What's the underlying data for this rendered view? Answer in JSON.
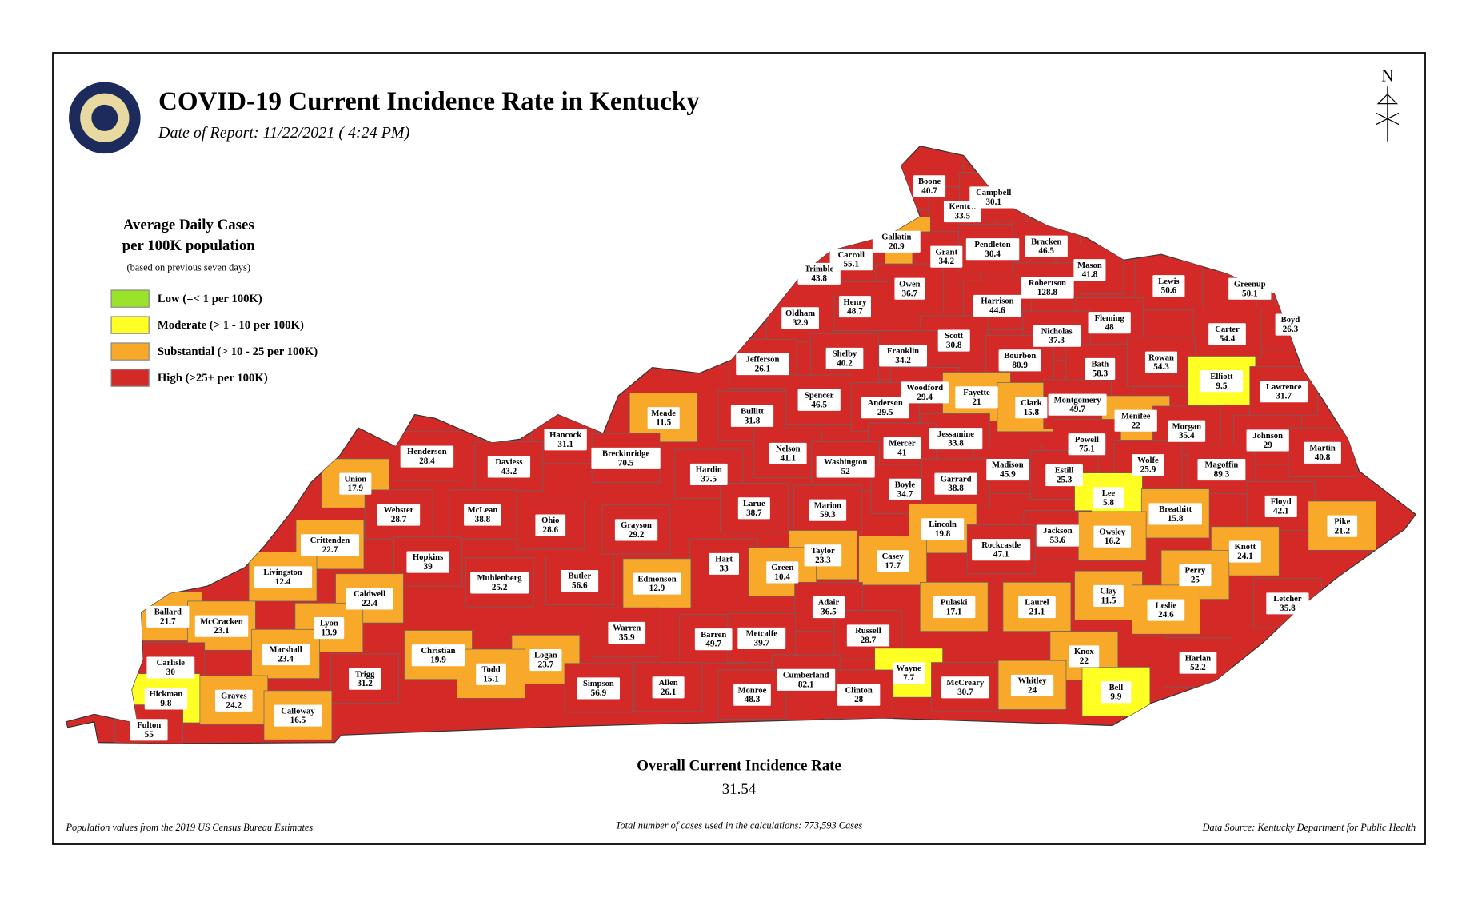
{
  "header": {
    "title": "COVID-19 Current Incidence Rate in Kentucky",
    "date": "Date of Report: 11/22/2021 ( 4:24 PM)"
  },
  "legend": {
    "title": [
      "Average Daily Cases",
      "per 100K population"
    ],
    "note": "(based on previous seven days)",
    "items": [
      {
        "label": "Low (=< 1 per 100K)",
        "color": "#9be32b"
      },
      {
        "label": "Moderate (> 1 - 10 per 100K)",
        "color": "#ffff24"
      },
      {
        "label": "Substantial (> 10 - 25 per 100K)",
        "color": "#f8a92a"
      },
      {
        "label": "High (>25+ per 100K)",
        "color": "#d42a27"
      }
    ]
  },
  "counties": [
    {
      "name": "Boone",
      "value": 40.7,
      "color": "#d42a27"
    },
    {
      "name": "Kenton",
      "value": 33.5,
      "color": "#d42a27"
    },
    {
      "name": "Campbell",
      "value": 30.1,
      "color": "#d42a27"
    },
    {
      "name": "Gallatin",
      "value": 20.9,
      "color": "#f8a92a"
    },
    {
      "name": "Carroll",
      "value": 55.1,
      "color": "#d42a27"
    },
    {
      "name": "Trimble",
      "value": 43.8,
      "color": "#d42a27"
    },
    {
      "name": "Grant",
      "value": 34.2,
      "color": "#d42a27"
    },
    {
      "name": "Pendleton",
      "value": 30.4,
      "color": "#d42a27"
    },
    {
      "name": "Bracken",
      "value": 46.5,
      "color": "#d42a27"
    },
    {
      "name": "Mason",
      "value": 41.8,
      "color": "#d42a27"
    },
    {
      "name": "Robertson",
      "value": 128.8,
      "color": "#d42a27"
    },
    {
      "name": "Lewis",
      "value": 50.6,
      "color": "#d42a27"
    },
    {
      "name": "Greenup",
      "value": 50.1,
      "color": "#d42a27"
    },
    {
      "name": "Owen",
      "value": 36.7,
      "color": "#d42a27"
    },
    {
      "name": "Henry",
      "value": 48.7,
      "color": "#d42a27"
    },
    {
      "name": "Oldham",
      "value": 32.9,
      "color": "#d42a27"
    },
    {
      "name": "Harrison",
      "value": 44.6,
      "color": "#d42a27"
    },
    {
      "name": "Fleming",
      "value": 48,
      "color": "#d42a27"
    },
    {
      "name": "Boyd",
      "value": 26.3,
      "color": "#d42a27"
    },
    {
      "name": "Carter",
      "value": 54.4,
      "color": "#d42a27"
    },
    {
      "name": "Nicholas",
      "value": 37.3,
      "color": "#d42a27"
    },
    {
      "name": "Scott",
      "value": 30.8,
      "color": "#d42a27"
    },
    {
      "name": "Franklin",
      "value": 34.2,
      "color": "#d42a27"
    },
    {
      "name": "Shelby",
      "value": 40.2,
      "color": "#d42a27"
    },
    {
      "name": "Jefferson",
      "value": 26.1,
      "color": "#d42a27"
    },
    {
      "name": "Bourbon",
      "value": 80.9,
      "color": "#d42a27"
    },
    {
      "name": "Bath",
      "value": 58.3,
      "color": "#d42a27"
    },
    {
      "name": "Rowan",
      "value": 54.3,
      "color": "#d42a27"
    },
    {
      "name": "Elliott",
      "value": 9.5,
      "color": "#ffff24"
    },
    {
      "name": "Lawrence",
      "value": 31.7,
      "color": "#d42a27"
    },
    {
      "name": "Woodford",
      "value": 29.4,
      "color": "#d42a27"
    },
    {
      "name": "Fayette",
      "value": 21,
      "color": "#f8a92a"
    },
    {
      "name": "Clark",
      "value": 15.8,
      "color": "#f8a92a"
    },
    {
      "name": "Montgomery",
      "value": 49.7,
      "color": "#d42a27"
    },
    {
      "name": "Spencer",
      "value": 46.5,
      "color": "#d42a27"
    },
    {
      "name": "Anderson",
      "value": 29.5,
      "color": "#d42a27"
    },
    {
      "name": "Menifee",
      "value": 22,
      "color": "#f8a92a"
    },
    {
      "name": "Bullitt",
      "value": 31.8,
      "color": "#d42a27"
    },
    {
      "name": "Meade",
      "value": 11.5,
      "color": "#f8a92a"
    },
    {
      "name": "Morgan",
      "value": 35.4,
      "color": "#d42a27"
    },
    {
      "name": "Johnson",
      "value": 29,
      "color": "#d42a27"
    },
    {
      "name": "Martin",
      "value": 40.8,
      "color": "#d42a27"
    },
    {
      "name": "Jessamine",
      "value": 33.8,
      "color": "#d42a27"
    },
    {
      "name": "Mercer",
      "value": 41,
      "color": "#d42a27"
    },
    {
      "name": "Powell",
      "value": 75.1,
      "color": "#d42a27"
    },
    {
      "name": "Hancock",
      "value": 31.1,
      "color": "#d42a27"
    },
    {
      "name": "Henderson",
      "value": 28.4,
      "color": "#d42a27"
    },
    {
      "name": "Daviess",
      "value": 43.2,
      "color": "#d42a27"
    },
    {
      "name": "Breckinridge",
      "value": 70.5,
      "color": "#d42a27"
    },
    {
      "name": "Nelson",
      "value": 41.1,
      "color": "#d42a27"
    },
    {
      "name": "Washington",
      "value": 52,
      "color": "#d42a27"
    },
    {
      "name": "Madison",
      "value": 45.9,
      "color": "#d42a27"
    },
    {
      "name": "Estill",
      "value": 25.3,
      "color": "#d42a27"
    },
    {
      "name": "Wolfe",
      "value": 25.9,
      "color": "#d42a27"
    },
    {
      "name": "Magoffin",
      "value": 89.3,
      "color": "#d42a27"
    },
    {
      "name": "Hardin",
      "value": 37.5,
      "color": "#d42a27"
    },
    {
      "name": "Boyle",
      "value": 34.7,
      "color": "#d42a27"
    },
    {
      "name": "Garrard",
      "value": 38.8,
      "color": "#d42a27"
    },
    {
      "name": "Union",
      "value": 17.9,
      "color": "#f8a92a"
    },
    {
      "name": "Lee",
      "value": 5.8,
      "color": "#ffff24"
    },
    {
      "name": "Webster",
      "value": 28.7,
      "color": "#d42a27"
    },
    {
      "name": "McLean",
      "value": 38.8,
      "color": "#d42a27"
    },
    {
      "name": "Larue",
      "value": 38.7,
      "color": "#d42a27"
    },
    {
      "name": "Marion",
      "value": 59.3,
      "color": "#d42a27"
    },
    {
      "name": "Breathitt",
      "value": 15.8,
      "color": "#f8a92a"
    },
    {
      "name": "Floyd",
      "value": 42.1,
      "color": "#d42a27"
    },
    {
      "name": "Ohio",
      "value": 28.6,
      "color": "#d42a27"
    },
    {
      "name": "Lincoln",
      "value": 19.8,
      "color": "#f8a92a"
    },
    {
      "name": "Grayson",
      "value": 29.2,
      "color": "#d42a27"
    },
    {
      "name": "Jackson",
      "value": 53.6,
      "color": "#d42a27"
    },
    {
      "name": "Owsley",
      "value": 16.2,
      "color": "#f8a92a"
    },
    {
      "name": "Pike",
      "value": 21.2,
      "color": "#f8a92a"
    },
    {
      "name": "Crittenden",
      "value": 22.7,
      "color": "#f8a92a"
    },
    {
      "name": "Taylor",
      "value": 23.3,
      "color": "#f8a92a"
    },
    {
      "name": "Casey",
      "value": 17.7,
      "color": "#f8a92a"
    },
    {
      "name": "Rockcastle",
      "value": 47.1,
      "color": "#d42a27"
    },
    {
      "name": "Knott",
      "value": 24.1,
      "color": "#f8a92a"
    },
    {
      "name": "Hopkins",
      "value": 39,
      "color": "#d42a27"
    },
    {
      "name": "Hart",
      "value": 33,
      "color": "#d42a27"
    },
    {
      "name": "Green",
      "value": 10.4,
      "color": "#f8a92a"
    },
    {
      "name": "Edmonson",
      "value": 12.9,
      "color": "#f8a92a"
    },
    {
      "name": "Livingston",
      "value": 12.4,
      "color": "#f8a92a"
    },
    {
      "name": "Butler",
      "value": 56.6,
      "color": "#d42a27"
    },
    {
      "name": "Muhlenberg",
      "value": 25.2,
      "color": "#d42a27"
    },
    {
      "name": "Perry",
      "value": 25,
      "color": "#f8a92a"
    },
    {
      "name": "Caldwell",
      "value": 22.4,
      "color": "#f8a92a"
    },
    {
      "name": "Clay",
      "value": 11.5,
      "color": "#f8a92a"
    },
    {
      "name": "Pulaski",
      "value": 17.1,
      "color": "#f8a92a"
    },
    {
      "name": "Laurel",
      "value": 21.1,
      "color": "#f8a92a"
    },
    {
      "name": "Ballard",
      "value": 21.7,
      "color": "#f8a92a"
    },
    {
      "name": "Leslie",
      "value": 24.6,
      "color": "#f8a92a"
    },
    {
      "name": "Letcher",
      "value": 35.8,
      "color": "#d42a27"
    },
    {
      "name": "Adair",
      "value": 36.5,
      "color": "#d42a27"
    },
    {
      "name": "McCracken",
      "value": 23.1,
      "color": "#f8a92a"
    },
    {
      "name": "Lyon",
      "value": 13.9,
      "color": "#f8a92a"
    },
    {
      "name": "Warren",
      "value": 35.9,
      "color": "#d42a27"
    },
    {
      "name": "Russell",
      "value": 28.7,
      "color": "#d42a27"
    },
    {
      "name": "Barren",
      "value": 49.7,
      "color": "#d42a27"
    },
    {
      "name": "Metcalfe",
      "value": 39.7,
      "color": "#d42a27"
    },
    {
      "name": "Marshall",
      "value": 23.4,
      "color": "#f8a92a"
    },
    {
      "name": "Christian",
      "value": 19.9,
      "color": "#f8a92a"
    },
    {
      "name": "Logan",
      "value": 23.7,
      "color": "#f8a92a"
    },
    {
      "name": "Knox",
      "value": 22,
      "color": "#f8a92a"
    },
    {
      "name": "Harlan",
      "value": 52.2,
      "color": "#d42a27"
    },
    {
      "name": "Carlisle",
      "value": 30,
      "color": "#d42a27"
    },
    {
      "name": "Trigg",
      "value": 31.2,
      "color": "#d42a27"
    },
    {
      "name": "Wayne",
      "value": 7.7,
      "color": "#ffff24"
    },
    {
      "name": "Todd",
      "value": 15.1,
      "color": "#f8a92a"
    },
    {
      "name": "Cumberland",
      "value": 82.1,
      "color": "#d42a27"
    },
    {
      "name": "McCreary",
      "value": 30.7,
      "color": "#d42a27"
    },
    {
      "name": "Whitley",
      "value": 24,
      "color": "#f8a92a"
    },
    {
      "name": "Bell",
      "value": 9.9,
      "color": "#ffff24"
    },
    {
      "name": "Simpson",
      "value": 56.9,
      "color": "#d42a27"
    },
    {
      "name": "Allen",
      "value": 26.1,
      "color": "#d42a27"
    },
    {
      "name": "Hickman",
      "value": 9.8,
      "color": "#ffff24"
    },
    {
      "name": "Graves",
      "value": 24.2,
      "color": "#f8a92a"
    },
    {
      "name": "Clinton",
      "value": 28,
      "color": "#d42a27"
    },
    {
      "name": "Monroe",
      "value": 48.3,
      "color": "#d42a27"
    },
    {
      "name": "Calloway",
      "value": 16.5,
      "color": "#f8a92a"
    },
    {
      "name": "Fulton",
      "value": 55,
      "color": "#d42a27"
    }
  ],
  "overall": {
    "label": "Overall Current Incidence Rate",
    "value": 31.54
  },
  "footer": {
    "left": "Population values from the 2019 US Census Bureau Estimates",
    "center": "Total number of cases used in the calculations: 773,593 Cases",
    "right": "Data Source: Kentucky Department for Public Health"
  },
  "compass": "N"
}
